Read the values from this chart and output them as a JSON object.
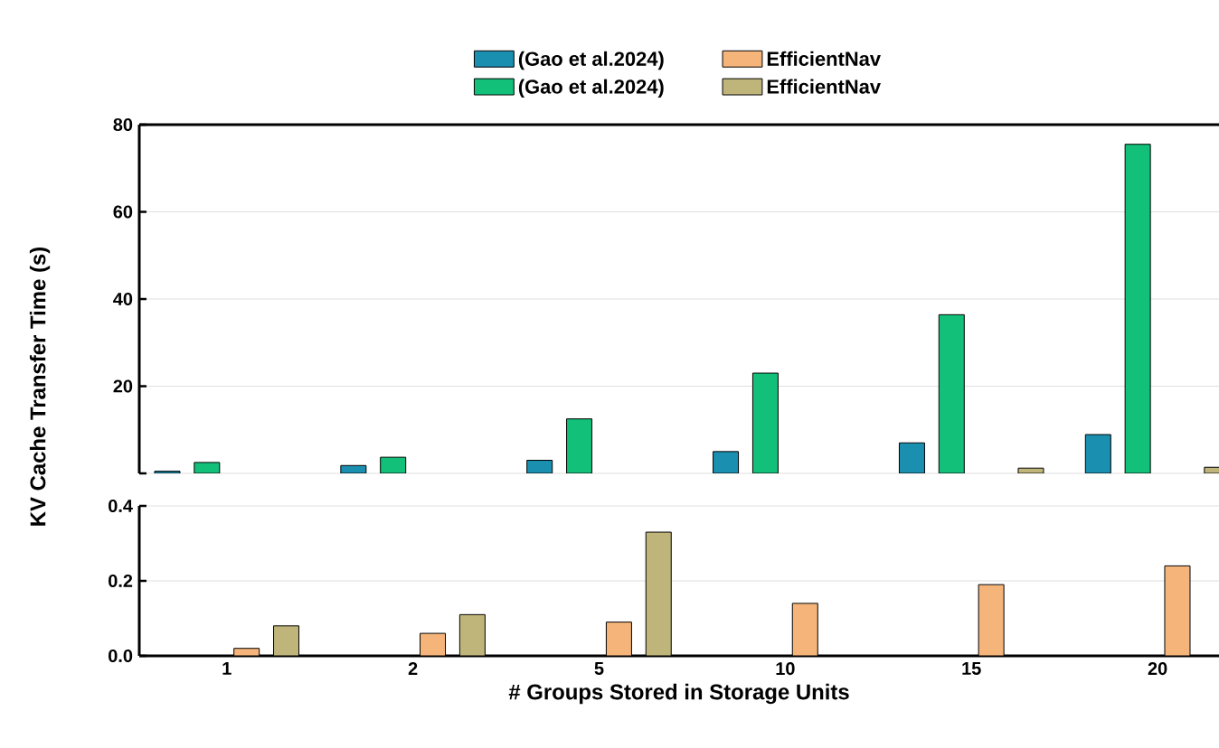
{
  "chart_data": [
    {
      "type": "bar",
      "ylabel": "KV Cache Transfer Time (s)",
      "categories": [
        "1",
        "2",
        "5",
        "10",
        "15",
        "20"
      ],
      "series": [
        {
          "name": "(Gao et al.2024)",
          "color": "#1a8fb0",
          "values": [
            0.5,
            1.8,
            3.0,
            5.0,
            7.0,
            8.9
          ]
        },
        {
          "name": "(Gao et al.2024)",
          "color": "#12c07a",
          "values": [
            2.5,
            3.7,
            12.5,
            23.0,
            36.4,
            75.5
          ]
        },
        {
          "name": "EfficientNav",
          "color": "#f5b57a",
          "values": [
            null,
            null,
            null,
            null,
            null,
            null
          ]
        },
        {
          "name": "EfficientNav",
          "color": "#bfb57a",
          "values": [
            null,
            null,
            null,
            null,
            1.2,
            1.4
          ]
        }
      ],
      "ylim": [
        0,
        80
      ],
      "yticks": [
        {
          "value": 0,
          "label": null
        },
        20,
        40,
        60,
        80
      ],
      "grid": "y",
      "legend": "top",
      "tick_labels": "y"
    },
    {
      "type": "bar",
      "xlabel": "# Groups Stored in Storage Units",
      "categories": [
        "1",
        "2",
        "5",
        "10",
        "15",
        "20"
      ],
      "series": [
        {
          "color": "#1a8fb0",
          "values": [
            null,
            null,
            null,
            null,
            null,
            null
          ]
        },
        {
          "color": "#12c07a",
          "values": [
            null,
            null,
            null,
            null,
            null,
            null
          ]
        },
        {
          "color": "#f5b57a",
          "values": [
            0.02,
            0.06,
            0.09,
            0.14,
            0.19,
            0.24
          ]
        },
        {
          "color": "#bfb57a",
          "values": [
            0.08,
            0.11,
            0.33,
            null,
            null,
            null
          ]
        }
      ],
      "ylim": [
        0,
        0.4
      ],
      "yticks": [
        {
          "value": 0,
          "label": "0.0"
        },
        0.2,
        0.4
      ],
      "grid": "y"
    }
  ]
}
